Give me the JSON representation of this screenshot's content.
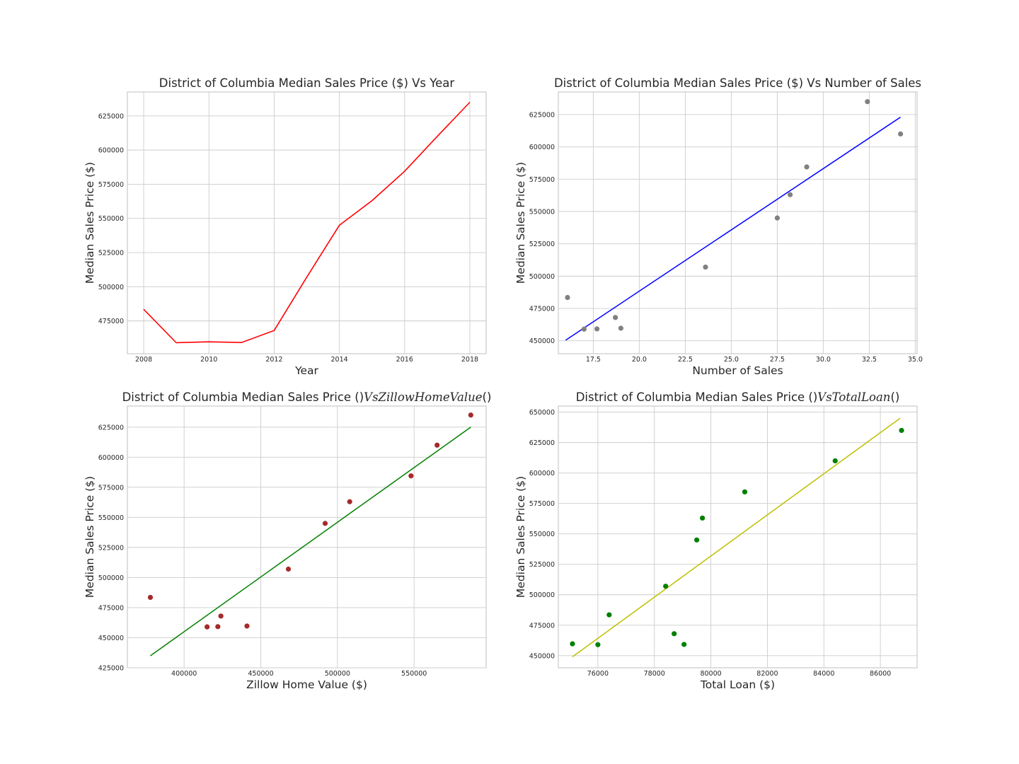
{
  "chart_data": [
    {
      "type": "line",
      "title": "District of Columbia Median Sales Price ($) Vs Year",
      "xlabel": "Year",
      "ylabel": "Median Sales Price ($)",
      "xlim": [
        2007.5,
        2018.5
      ],
      "ylim": [
        451000,
        642500
      ],
      "xticks": [
        2008,
        2010,
        2012,
        2014,
        2016,
        2018
      ],
      "yticks": [
        475000,
        500000,
        525000,
        550000,
        575000,
        600000,
        625000
      ],
      "grid": true,
      "line_color": "#ff0000",
      "series": [
        {
          "x": [
            2008,
            2009,
            2010,
            2011,
            2012,
            2013,
            2014,
            2015,
            2016,
            2017,
            2018
          ],
          "y": [
            483500,
            459000,
            459700,
            459200,
            468000,
            507000,
            545000,
            563000,
            584500,
            610000,
            635000
          ]
        }
      ]
    },
    {
      "type": "scatter",
      "title": "District of Columbia Median Sales Price ($) Vs Number of Sales",
      "xlabel": "Number of Sales",
      "ylabel": "Median Sales Price ($)",
      "xlim": [
        15.6,
        35.1
      ],
      "ylim": [
        440000,
        642500
      ],
      "xticks": [
        17.5,
        20.0,
        22.5,
        25.0,
        27.5,
        30.0,
        32.5,
        35.0
      ],
      "yticks": [
        450000,
        475000,
        500000,
        525000,
        550000,
        575000,
        600000,
        625000
      ],
      "grid": true,
      "point_color": "#808080",
      "line_color": "#0000ff",
      "x": [
        16.1,
        17.0,
        17.7,
        18.7,
        19.0,
        23.6,
        27.5,
        28.2,
        29.1,
        32.4,
        34.2
      ],
      "y": [
        483500,
        459000,
        459200,
        468000,
        459700,
        507000,
        545000,
        563000,
        584500,
        635000,
        610000
      ],
      "fit": {
        "x": [
          16.0,
          34.2
        ],
        "y": [
          450500,
          623000
        ]
      }
    },
    {
      "type": "scatter",
      "title": "District of Columbia Median Sales Price ()",
      "title_math": "VsZillowHomeValue",
      "title_end": "()",
      "xlabel": "Zillow Home Value ($)",
      "ylabel": "Median Sales Price ($)",
      "xlim": [
        363000,
        597000
      ],
      "ylim": [
        425000,
        642500
      ],
      "xticks": [
        400000,
        450000,
        500000,
        550000
      ],
      "yticks": [
        425000,
        450000,
        475000,
        500000,
        525000,
        550000,
        575000,
        600000,
        625000
      ],
      "grid": true,
      "point_color": "#a52a2a",
      "line_color": "#008000",
      "x": [
        378000,
        415000,
        422000,
        424000,
        441000,
        468000,
        492000,
        508000,
        548000,
        565000,
        587000
      ],
      "y": [
        483500,
        459000,
        459200,
        468000,
        459700,
        507000,
        545000,
        563000,
        584500,
        610000,
        635000
      ],
      "fit": {
        "x": [
          378000,
          587000
        ],
        "y": [
          435000,
          625000
        ]
      }
    },
    {
      "type": "scatter",
      "title": "District of Columbia Median Sales Price ()",
      "title_math": "VsTotalLoan",
      "title_end": "()",
      "xlabel": "Total Loan ($)",
      "ylabel": "Median Sales Price ($)",
      "xlim": [
        74600,
        87300
      ],
      "ylim": [
        440000,
        655000
      ],
      "xticks": [
        76000,
        78000,
        80000,
        82000,
        84000,
        86000
      ],
      "yticks": [
        450000,
        475000,
        500000,
        525000,
        550000,
        575000,
        600000,
        625000,
        650000
      ],
      "grid": true,
      "point_color": "#008000",
      "line_color": "#bfbf00",
      "x": [
        75100,
        76000,
        76400,
        78400,
        78700,
        79050,
        79500,
        79700,
        81200,
        84400,
        86750
      ],
      "y": [
        459700,
        459000,
        483500,
        507000,
        468000,
        459200,
        545000,
        563000,
        584500,
        610000,
        635000
      ],
      "fit": {
        "x": [
          75100,
          86700
        ],
        "y": [
          449000,
          645000
        ]
      }
    }
  ]
}
